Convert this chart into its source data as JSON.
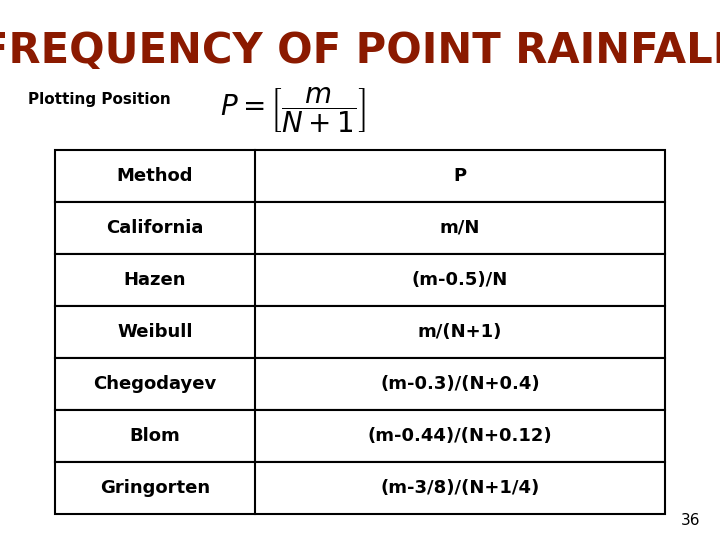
{
  "title": "FREQUENCY OF POINT RAINFALL",
  "title_color": "#8B1A00",
  "subtitle": "Plotting Position",
  "bg_color": "#FFFFFF",
  "table_methods": [
    "Method",
    "California",
    "Hazen",
    "Weibull",
    "Chegodayev",
    "Blom",
    "Gringorten"
  ],
  "table_formulas": [
    "P",
    "m/N",
    "(m-0.5)/N",
    "m/(N+1)",
    "(m-0.3)/(N+0.4)",
    "(m-0.44)/(N+0.12)",
    "(m-3/8)/(N+1/4)"
  ],
  "page_number": "36",
  "title_fontsize": 30,
  "subtitle_fontsize": 11,
  "table_fontsize": 13
}
